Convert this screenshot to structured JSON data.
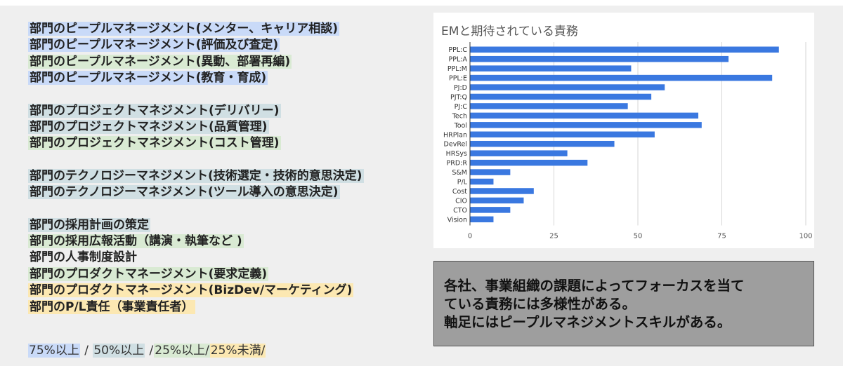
{
  "duties": [
    {
      "text": "部門のピープルマネージメント(メンター、キャリア相談)",
      "level": "blue"
    },
    {
      "text": "部門のピープルマネージメント(評価及び査定)",
      "level": "blue"
    },
    {
      "text": "部門のピープルマネージメント(異動、部署再編)",
      "level": "green"
    },
    {
      "text": "部門のピープルマネージメント(教育・育成)",
      "level": "blue"
    },
    {
      "text": "",
      "level": "gap"
    },
    {
      "text": "部門のプロジェクトマネジメント(デリバリー)",
      "level": "grey"
    },
    {
      "text": "部門のプロジェクトマネジメント(品質管理)",
      "level": "grey"
    },
    {
      "text": "部門のプロジェクトマネジメント(コスト管理)",
      "level": "green"
    },
    {
      "text": "",
      "level": "gap"
    },
    {
      "text": "部門のテクノロジーマネジメント(技術選定・技術的意思決定)",
      "level": "grey"
    },
    {
      "text": "部門のテクノロジーマネジメント(ツール導入の意思決定)",
      "level": "grey"
    },
    {
      "text": "",
      "level": "gap"
    },
    {
      "text": "部門の採用計画の策定",
      "level": "grey"
    },
    {
      "text": "部門の採用広報活動（講演・執筆など )",
      "level": "green"
    },
    {
      "text": "部門の人事制度設計",
      "level": "none"
    },
    {
      "text": "部門のプロダクトマネージメント(要求定義)",
      "level": "green"
    },
    {
      "text": "部門のプロダクトマネージメント(BizDev/マーケティング)",
      "level": "yellow"
    },
    {
      "text": "部門のP/L責任（事業責任者）",
      "level": "yellow"
    }
  ],
  "legend": {
    "p75": "75%以上",
    "sep1": " / ",
    "p50": "50%以上",
    "sep2": " /",
    "p25": "25%以上/",
    "under25": "25%未満/"
  },
  "colors": {
    "blue": "#c9daf8",
    "grey": "#d0dfe3",
    "green": "#d9ead3",
    "yellow": "#fce8b2",
    "bar": "#3a78e0"
  },
  "chart_data": {
    "type": "bar",
    "orientation": "horizontal",
    "title": "EMと期待されている責務",
    "categories": [
      "PPL:C",
      "PPL:A",
      "PPL:M",
      "PPL:E",
      "PJ:D",
      "PJT:Q",
      "PJ:C",
      "Tech",
      "Tool",
      "HRPlan",
      "DevRel",
      "HRSys",
      "PRD:R",
      "S&M",
      "P/L",
      "Cost",
      "CIO",
      "CTO",
      "Vision"
    ],
    "values": [
      92,
      77,
      48,
      90,
      58,
      54,
      47,
      68,
      69,
      55,
      43,
      29,
      35,
      12,
      7,
      19,
      16,
      12,
      7
    ],
    "xlim": [
      0,
      100
    ],
    "xticks": [
      "0",
      "25",
      "50",
      "75",
      "100"
    ],
    "grid": true
  },
  "note": {
    "text": "各社、事業組織の課題によってフォーカスを当て\nている責務には多様性がある。\n軸足にはピープルマネジメントスキルがある。"
  }
}
